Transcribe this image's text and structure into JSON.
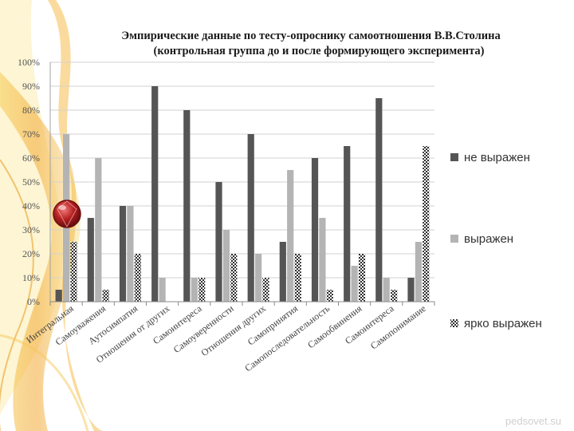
{
  "watermark": "pedsovet.su",
  "chart_data": {
    "type": "bar",
    "title": "Эмпирические данные по тесту-опроснику самоотношения В.В.Столина",
    "subtitle": "(контрольная группа  до и после формирующего эксперимента)",
    "ylim": [
      0,
      100
    ],
    "y_ticks": [
      "0%",
      "10%",
      "20%",
      "30%",
      "40%",
      "50%",
      "60%",
      "70%",
      "80%",
      "90%",
      "100%"
    ],
    "grid": true,
    "legend_position": "right",
    "categories": [
      "Интегральная",
      "Самоуважения",
      "Аутосимпатия",
      "Отношения от других",
      "Самоинтереса",
      "Самоуверенности",
      "Отношения других",
      "Самопринятия",
      "Самопоследовательность",
      "Самообвинения",
      "Самоинтереса",
      "Самопонимание"
    ],
    "series": [
      {
        "name": "не выражен",
        "color": "#555555",
        "pattern": "solid",
        "values": [
          5,
          35,
          40,
          90,
          80,
          50,
          70,
          25,
          60,
          65,
          85,
          10
        ]
      },
      {
        "name": "выражен",
        "color": "#b4b4b4",
        "pattern": "solid",
        "values": [
          70,
          60,
          40,
          10,
          10,
          30,
          20,
          55,
          35,
          15,
          10,
          25
        ]
      },
      {
        "name": "ярко выражен",
        "color": "#3a3a3a",
        "pattern": "checker",
        "values": [
          25,
          5,
          20,
          0,
          10,
          20,
          10,
          20,
          5,
          20,
          5,
          65
        ]
      }
    ]
  }
}
